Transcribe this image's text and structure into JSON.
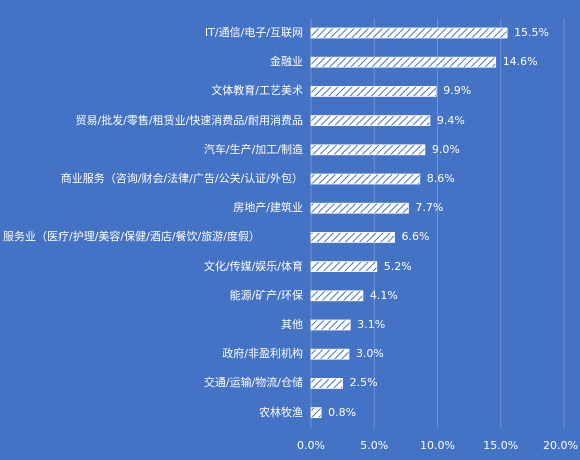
{
  "chart_data": {
    "type": "bar",
    "orientation": "horizontal",
    "categories": [
      "IT/通信/电子/互联网",
      "金融业",
      "文体教育/工艺美术",
      "贸易/批发/零售/租赁业/快速消费品/耐用消费品",
      "汽车/生产/加工/制造",
      "商业服务（咨询/财会/法律/广告/公关/认证/外包）",
      "房地产/建筑业",
      "服务业（医疗/护理/美容/保健/酒店/餐饮/旅游/度假）",
      "文化/传媒/娱乐/体育",
      "能源/矿产/环保",
      "其他",
      "政府/非盈利机构",
      "交通/运输/物流/仓储",
      "农林牧渔"
    ],
    "values": [
      15.5,
      14.6,
      9.9,
      9.4,
      9.0,
      8.6,
      7.7,
      6.6,
      5.2,
      4.1,
      3.1,
      3.0,
      2.5,
      0.8
    ],
    "value_labels": [
      "15.5%",
      "14.6%",
      "9.9%",
      "9.4%",
      "9.0%",
      "8.6%",
      "7.7%",
      "6.6%",
      "5.2%",
      "4.1%",
      "3.1%",
      "3.0%",
      "2.5%",
      "0.8%"
    ],
    "xlim": [
      0,
      20
    ],
    "x_ticks": [
      "0.0%",
      "5.0%",
      "10.0%",
      "15.0%",
      "20.0%"
    ],
    "title": "",
    "xlabel": "",
    "ylabel": "",
    "grid": "vertical",
    "legend": "none",
    "colors": {
      "background": "#4472c4",
      "bar": "#ffffff",
      "bar_hatch": "#4472c4",
      "gridline": "#6f92d2",
      "text": "#ffffff"
    }
  }
}
